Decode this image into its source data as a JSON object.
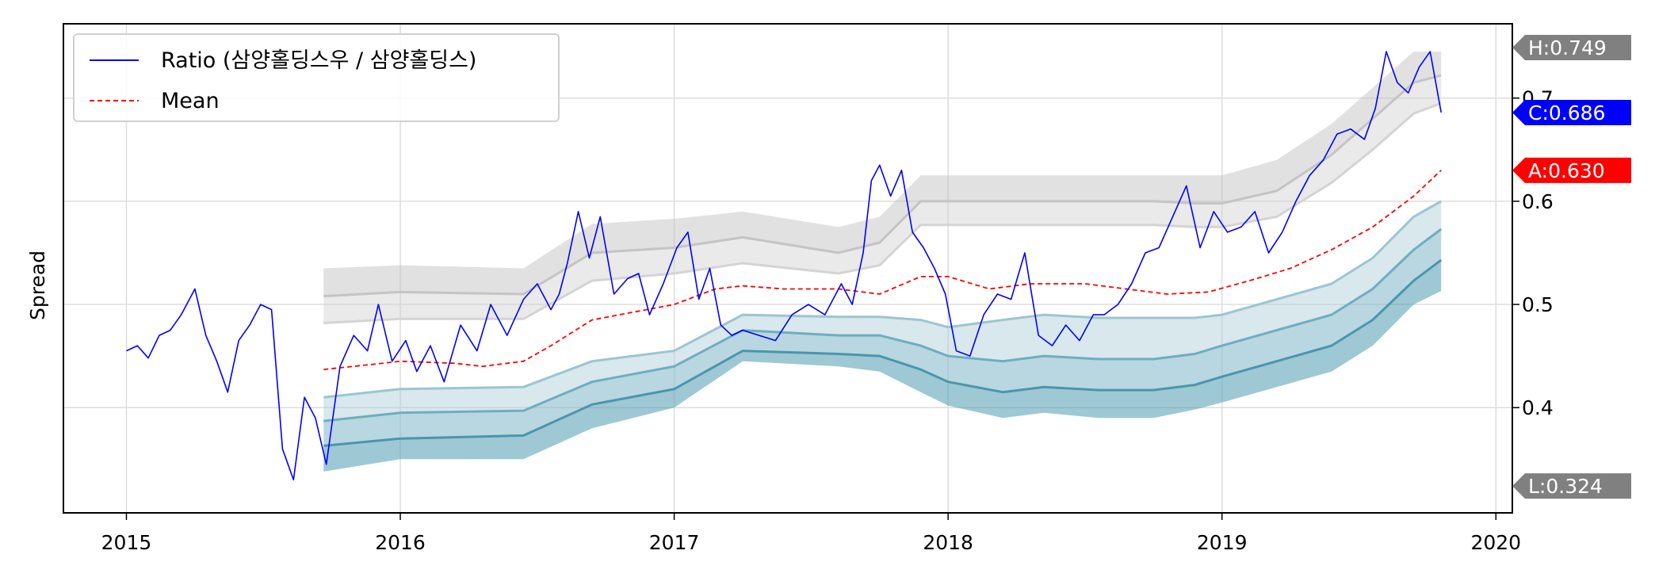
{
  "chart_data": {
    "type": "line",
    "ylabel": "Spread",
    "xlim": [
      2014.77,
      2020.06
    ],
    "ylim": [
      0.298,
      0.772
    ],
    "x_ticks": [
      {
        "value": 2015,
        "label": "2015"
      },
      {
        "value": 2016,
        "label": "2016"
      },
      {
        "value": 2017,
        "label": "2017"
      },
      {
        "value": 2018,
        "label": "2018"
      },
      {
        "value": 2019,
        "label": "2019"
      },
      {
        "value": 2020,
        "label": "2020"
      }
    ],
    "y_ticks": [
      {
        "value": 0.4,
        "label": "0.4"
      },
      {
        "value": 0.5,
        "label": "0.5"
      },
      {
        "value": 0.6,
        "label": "0.6"
      },
      {
        "value": 0.7,
        "label": "0.7"
      }
    ],
    "grid": true,
    "legend": {
      "position": "top-left",
      "entries": [
        {
          "label": "Ratio (삼양홀딩스우 / 삼양홀딩스)",
          "color": "#0000ff",
          "style": "solid"
        },
        {
          "label": "Mean",
          "color": "#ff0000",
          "style": "dashed"
        }
      ]
    },
    "ratio": {
      "name": "Ratio (삼양홀딩스우 / 삼양홀딩스)",
      "color": "#0000ff",
      "x": [
        2015.0,
        2015.04,
        2015.08,
        2015.12,
        2015.16,
        2015.2,
        2015.25,
        2015.29,
        2015.33,
        2015.37,
        2015.41,
        2015.45,
        2015.49,
        2015.53,
        2015.57,
        2015.61,
        2015.65,
        2015.69,
        2015.73,
        2015.78,
        2015.83,
        2015.88,
        2015.92,
        2015.97,
        2016.02,
        2016.06,
        2016.11,
        2016.16,
        2016.22,
        2016.28,
        2016.33,
        2016.39,
        2016.45,
        2016.5,
        2016.55,
        2016.58,
        2016.61,
        2016.65,
        2016.69,
        2016.73,
        2016.78,
        2016.83,
        2016.87,
        2016.91,
        2016.96,
        2017.01,
        2017.05,
        2017.09,
        2017.13,
        2017.17,
        2017.21,
        2017.25,
        2017.31,
        2017.37,
        2017.43,
        2017.49,
        2017.55,
        2017.61,
        2017.65,
        2017.69,
        2017.72,
        2017.75,
        2017.79,
        2017.83,
        2017.87,
        2017.91,
        2017.95,
        2017.99,
        2018.03,
        2018.08,
        2018.13,
        2018.18,
        2018.23,
        2018.28,
        2018.33,
        2018.38,
        2018.43,
        2018.48,
        2018.53,
        2018.57,
        2018.62,
        2018.67,
        2018.72,
        2018.77,
        2018.82,
        2018.87,
        2018.92,
        2018.97,
        2019.02,
        2019.07,
        2019.12,
        2019.17,
        2019.22,
        2019.27,
        2019.32,
        2019.37,
        2019.42,
        2019.47,
        2019.52,
        2019.56,
        2019.6,
        2019.64,
        2019.68,
        2019.72,
        2019.76,
        2019.8
      ],
      "y": [
        0.455,
        0.46,
        0.448,
        0.47,
        0.475,
        0.49,
        0.515,
        0.47,
        0.445,
        0.415,
        0.465,
        0.48,
        0.5,
        0.495,
        0.36,
        0.33,
        0.41,
        0.39,
        0.345,
        0.44,
        0.47,
        0.455,
        0.5,
        0.445,
        0.465,
        0.435,
        0.46,
        0.425,
        0.48,
        0.455,
        0.5,
        0.47,
        0.505,
        0.52,
        0.495,
        0.51,
        0.54,
        0.59,
        0.545,
        0.585,
        0.51,
        0.525,
        0.53,
        0.49,
        0.52,
        0.555,
        0.57,
        0.505,
        0.535,
        0.48,
        0.47,
        0.475,
        0.47,
        0.465,
        0.49,
        0.5,
        0.49,
        0.52,
        0.5,
        0.55,
        0.62,
        0.635,
        0.605,
        0.63,
        0.57,
        0.555,
        0.535,
        0.51,
        0.455,
        0.45,
        0.49,
        0.51,
        0.505,
        0.55,
        0.47,
        0.46,
        0.48,
        0.465,
        0.49,
        0.49,
        0.5,
        0.52,
        0.55,
        0.555,
        0.585,
        0.615,
        0.555,
        0.59,
        0.57,
        0.575,
        0.59,
        0.55,
        0.57,
        0.6,
        0.625,
        0.64,
        0.665,
        0.67,
        0.66,
        0.69,
        0.745,
        0.715,
        0.705,
        0.73,
        0.745,
        0.686
      ]
    },
    "mean": {
      "name": "Mean",
      "color": "#ff0000",
      "x": [
        2015.72,
        2015.9,
        2016.0,
        2016.2,
        2016.3,
        2016.45,
        2016.55,
        2016.7,
        2016.9,
        2017.0,
        2017.15,
        2017.25,
        2017.4,
        2017.6,
        2017.75,
        2017.9,
        2018.0,
        2018.15,
        2018.3,
        2018.5,
        2018.65,
        2018.8,
        2018.95,
        2019.1,
        2019.25,
        2019.4,
        2019.55,
        2019.7,
        2019.8
      ],
      "y": [
        0.437,
        0.442,
        0.445,
        0.443,
        0.44,
        0.445,
        0.46,
        0.485,
        0.495,
        0.5,
        0.515,
        0.518,
        0.515,
        0.515,
        0.51,
        0.527,
        0.527,
        0.515,
        0.52,
        0.52,
        0.515,
        0.51,
        0.512,
        0.523,
        0.535,
        0.553,
        0.575,
        0.605,
        0.63
      ]
    },
    "bands": {
      "x": [
        2015.72,
        2016.0,
        2016.45,
        2016.7,
        2017.0,
        2017.25,
        2017.6,
        2017.75,
        2017.9,
        2018.0,
        2018.2,
        2018.35,
        2018.55,
        2018.75,
        2018.9,
        2019.0,
        2019.2,
        2019.4,
        2019.55,
        2019.7,
        2019.8
      ],
      "upper3": [
        0.535,
        0.538,
        0.535,
        0.578,
        0.583,
        0.59,
        0.575,
        0.585,
        0.625,
        0.625,
        0.625,
        0.625,
        0.625,
        0.625,
        0.625,
        0.625,
        0.64,
        0.675,
        0.71,
        0.745,
        0.745
      ],
      "upper2": [
        0.508,
        0.512,
        0.51,
        0.55,
        0.555,
        0.565,
        0.55,
        0.56,
        0.6,
        0.6,
        0.6,
        0.6,
        0.6,
        0.6,
        0.598,
        0.598,
        0.61,
        0.645,
        0.68,
        0.715,
        0.722
      ],
      "upper1": [
        0.482,
        0.486,
        0.486,
        0.523,
        0.53,
        0.54,
        0.53,
        0.538,
        0.577,
        0.577,
        0.577,
        0.577,
        0.577,
        0.577,
        0.575,
        0.575,
        0.585,
        0.618,
        0.65,
        0.685,
        0.695
      ],
      "lower1": [
        0.41,
        0.418,
        0.42,
        0.445,
        0.455,
        0.49,
        0.488,
        0.488,
        0.485,
        0.478,
        0.485,
        0.49,
        0.487,
        0.487,
        0.487,
        0.49,
        0.505,
        0.52,
        0.545,
        0.585,
        0.6
      ],
      "lower2": [
        0.387,
        0.395,
        0.397,
        0.425,
        0.44,
        0.475,
        0.47,
        0.47,
        0.46,
        0.45,
        0.445,
        0.45,
        0.447,
        0.447,
        0.452,
        0.46,
        0.475,
        0.49,
        0.515,
        0.553,
        0.573
      ],
      "lower3": [
        0.363,
        0.37,
        0.373,
        0.403,
        0.418,
        0.455,
        0.452,
        0.45,
        0.437,
        0.425,
        0.415,
        0.42,
        0.417,
        0.417,
        0.422,
        0.43,
        0.445,
        0.46,
        0.485,
        0.523,
        0.543
      ],
      "lower4": [
        0.338,
        0.35,
        0.35,
        0.38,
        0.4,
        0.445,
        0.44,
        0.435,
        0.415,
        0.402,
        0.39,
        0.395,
        0.39,
        0.39,
        0.398,
        0.405,
        0.42,
        0.435,
        0.46,
        0.5,
        0.513
      ]
    },
    "level_markers": [
      {
        "label": "H:0.749",
        "value": 0.749,
        "color": "#808080"
      },
      {
        "label": "C:0.686",
        "value": 0.686,
        "color": "#0000ff"
      },
      {
        "label": "A:0.630",
        "value": 0.63,
        "color": "#ff0000"
      },
      {
        "label": "L:0.324",
        "value": 0.324,
        "color": "#808080"
      }
    ]
  }
}
